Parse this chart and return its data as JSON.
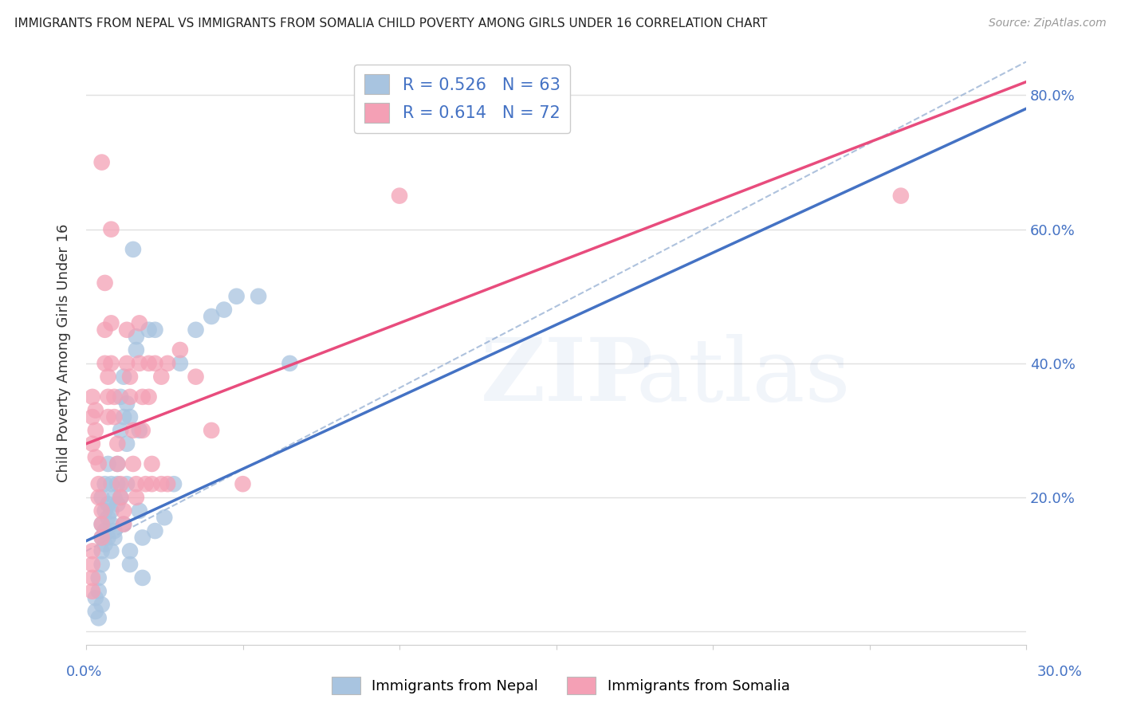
{
  "title": "IMMIGRANTS FROM NEPAL VS IMMIGRANTS FROM SOMALIA CHILD POVERTY AMONG GIRLS UNDER 16 CORRELATION CHART",
  "source": "Source: ZipAtlas.com",
  "ylabel": "Child Poverty Among Girls Under 16",
  "xlim": [
    0.0,
    0.3
  ],
  "ylim": [
    -0.02,
    0.85
  ],
  "y_ticks": [
    0.0,
    0.2,
    0.4,
    0.6,
    0.8
  ],
  "y_tick_labels": [
    "",
    "20.0%",
    "40.0%",
    "60.0%",
    "80.0%"
  ],
  "nepal_color": "#a8c4e0",
  "somalia_color": "#f4a0b5",
  "nepal_line_color": "#4472c4",
  "somalia_line_color": "#e84c7d",
  "nepal_R": 0.526,
  "nepal_N": 63,
  "somalia_R": 0.614,
  "somalia_N": 72,
  "legend_text_color": "#4472c4",
  "nepal_line": [
    [
      0.0,
      0.135
    ],
    [
      0.3,
      0.78
    ]
  ],
  "somalia_line": [
    [
      0.0,
      0.28
    ],
    [
      0.3,
      0.82
    ]
  ],
  "dash_line": [
    [
      0.0,
      0.12
    ],
    [
      0.3,
      0.85
    ]
  ],
  "nepal_scatter": [
    [
      0.003,
      0.05
    ],
    [
      0.004,
      0.08
    ],
    [
      0.004,
      0.06
    ],
    [
      0.005,
      0.14
    ],
    [
      0.005,
      0.16
    ],
    [
      0.005,
      0.12
    ],
    [
      0.005,
      0.2
    ],
    [
      0.005,
      0.1
    ],
    [
      0.006,
      0.22
    ],
    [
      0.006,
      0.13
    ],
    [
      0.006,
      0.15
    ],
    [
      0.006,
      0.18
    ],
    [
      0.007,
      0.25
    ],
    [
      0.007,
      0.19
    ],
    [
      0.007,
      0.17
    ],
    [
      0.007,
      0.14
    ],
    [
      0.008,
      0.16
    ],
    [
      0.008,
      0.12
    ],
    [
      0.008,
      0.22
    ],
    [
      0.008,
      0.18
    ],
    [
      0.009,
      0.2
    ],
    [
      0.009,
      0.15
    ],
    [
      0.009,
      0.14
    ],
    [
      0.01,
      0.25
    ],
    [
      0.01,
      0.22
    ],
    [
      0.01,
      0.19
    ],
    [
      0.011,
      0.3
    ],
    [
      0.011,
      0.35
    ],
    [
      0.011,
      0.2
    ],
    [
      0.012,
      0.38
    ],
    [
      0.012,
      0.32
    ],
    [
      0.012,
      0.16
    ],
    [
      0.013,
      0.34
    ],
    [
      0.013,
      0.28
    ],
    [
      0.013,
      0.22
    ],
    [
      0.014,
      0.32
    ],
    [
      0.014,
      0.12
    ],
    [
      0.014,
      0.1
    ],
    [
      0.015,
      0.57
    ],
    [
      0.016,
      0.44
    ],
    [
      0.016,
      0.42
    ],
    [
      0.017,
      0.3
    ],
    [
      0.017,
      0.18
    ],
    [
      0.018,
      0.14
    ],
    [
      0.018,
      0.08
    ],
    [
      0.02,
      0.45
    ],
    [
      0.022,
      0.45
    ],
    [
      0.022,
      0.15
    ],
    [
      0.025,
      0.17
    ],
    [
      0.028,
      0.22
    ],
    [
      0.03,
      0.4
    ],
    [
      0.035,
      0.45
    ],
    [
      0.04,
      0.47
    ],
    [
      0.044,
      0.48
    ],
    [
      0.048,
      0.5
    ],
    [
      0.055,
      0.5
    ],
    [
      0.065,
      0.4
    ],
    [
      0.003,
      0.03
    ],
    [
      0.004,
      0.02
    ],
    [
      0.005,
      0.04
    ]
  ],
  "somalia_scatter": [
    [
      0.002,
      0.35
    ],
    [
      0.002,
      0.32
    ],
    [
      0.002,
      0.28
    ],
    [
      0.003,
      0.26
    ],
    [
      0.003,
      0.33
    ],
    [
      0.003,
      0.3
    ],
    [
      0.004,
      0.25
    ],
    [
      0.004,
      0.22
    ],
    [
      0.004,
      0.2
    ],
    [
      0.005,
      0.18
    ],
    [
      0.005,
      0.16
    ],
    [
      0.005,
      0.14
    ],
    [
      0.005,
      0.7
    ],
    [
      0.006,
      0.52
    ],
    [
      0.006,
      0.45
    ],
    [
      0.006,
      0.4
    ],
    [
      0.007,
      0.38
    ],
    [
      0.007,
      0.35
    ],
    [
      0.007,
      0.32
    ],
    [
      0.008,
      0.6
    ],
    [
      0.008,
      0.46
    ],
    [
      0.008,
      0.4
    ],
    [
      0.009,
      0.35
    ],
    [
      0.009,
      0.32
    ],
    [
      0.01,
      0.28
    ],
    [
      0.01,
      0.25
    ],
    [
      0.011,
      0.22
    ],
    [
      0.011,
      0.2
    ],
    [
      0.012,
      0.18
    ],
    [
      0.012,
      0.16
    ],
    [
      0.013,
      0.45
    ],
    [
      0.013,
      0.4
    ],
    [
      0.014,
      0.38
    ],
    [
      0.014,
      0.35
    ],
    [
      0.015,
      0.3
    ],
    [
      0.015,
      0.25
    ],
    [
      0.016,
      0.22
    ],
    [
      0.016,
      0.2
    ],
    [
      0.017,
      0.46
    ],
    [
      0.017,
      0.4
    ],
    [
      0.018,
      0.35
    ],
    [
      0.018,
      0.3
    ],
    [
      0.019,
      0.22
    ],
    [
      0.02,
      0.4
    ],
    [
      0.02,
      0.35
    ],
    [
      0.021,
      0.25
    ],
    [
      0.021,
      0.22
    ],
    [
      0.022,
      0.4
    ],
    [
      0.024,
      0.38
    ],
    [
      0.024,
      0.22
    ],
    [
      0.026,
      0.4
    ],
    [
      0.026,
      0.22
    ],
    [
      0.03,
      0.42
    ],
    [
      0.035,
      0.38
    ],
    [
      0.04,
      0.3
    ],
    [
      0.05,
      0.22
    ],
    [
      0.002,
      0.12
    ],
    [
      0.002,
      0.1
    ],
    [
      0.002,
      0.08
    ],
    [
      0.002,
      0.06
    ],
    [
      0.1,
      0.65
    ],
    [
      0.26,
      0.65
    ]
  ],
  "background_color": "#ffffff",
  "grid_color": "#e0e0e0",
  "title_color": "#222222",
  "right_axis_tick_color": "#4472c4"
}
